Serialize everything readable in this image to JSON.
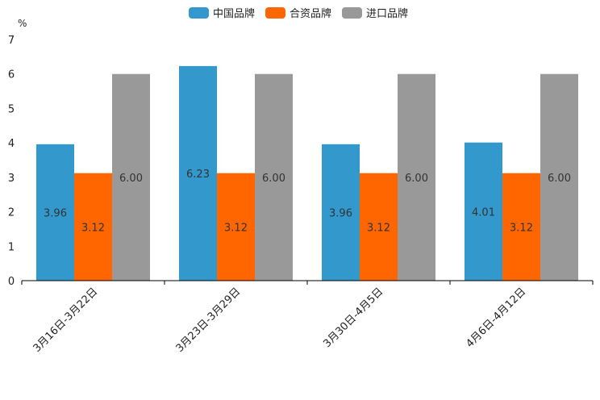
{
  "chart_data": {
    "type": "bar",
    "title": "",
    "xlabel": "",
    "ylabel": "%",
    "ylim": [
      0,
      7
    ],
    "yticks": [
      "0",
      "1",
      "2",
      "3",
      "4",
      "5",
      "6",
      "7"
    ],
    "categories": [
      "3月16日-3月22日",
      "3月23日-3月29日",
      "3月30日-4月5日",
      "4月6日-4月12日"
    ],
    "series": [
      {
        "name": "中国品牌",
        "color": "#3399cc",
        "values": [
          3.96,
          6.23,
          3.96,
          4.01
        ],
        "labels": [
          "3.96",
          "6.23",
          "3.96",
          "4.01"
        ]
      },
      {
        "name": "合资品牌",
        "color": "#ff6600",
        "values": [
          3.12,
          3.12,
          3.12,
          3.12
        ],
        "labels": [
          "3.12",
          "3.12",
          "3.12",
          "3.12"
        ]
      },
      {
        "name": "进口品牌",
        "color": "#999999",
        "values": [
          6.0,
          6.0,
          6.0,
          6.0
        ],
        "labels": [
          "6.00",
          "6.00",
          "6.00",
          "6.00"
        ]
      }
    ],
    "legend_position": "top-center",
    "grid": false
  }
}
